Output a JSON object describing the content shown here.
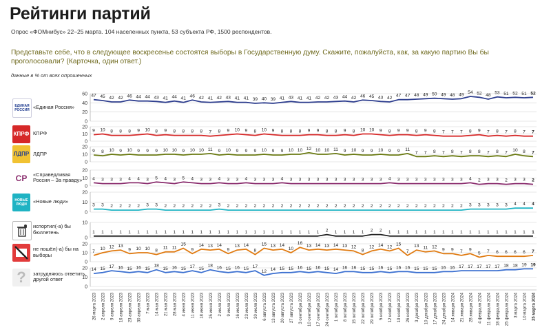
{
  "header": {
    "title": "Рейтинги партий",
    "subtitle": "Опрос «ФОМнибус» 22–25 марта. 104 населенных пункта, 53 субъекта РФ, 1500 респондентов.",
    "question": "Представьте себе, что в следующее воскресенье состоятся выборы в Государственную думу. Скажите, пожалуйста, как, за какую партию Вы бы проголосовали? (Карточка, один ответ.)",
    "units": "данные в % от всех опрошенных"
  },
  "colors": {
    "title": "#1c1c1c",
    "question": "#6f6a1e",
    "grid": "#cfcfcf"
  },
  "chart_data": {
    "type": "line",
    "dates": [
      "26 марта 2023",
      "2 апреля 2023",
      "9 апреля 2023",
      "16 апреля 2023",
      "23 апреля 2023",
      "30 апреля 2023",
      "7 мая 2023",
      "14 мая 2023",
      "21 мая 2023",
      "28 мая 2023",
      "4 июня 2023",
      "11 июня 2023",
      "18 июня 2023",
      "25 июня 2023",
      "2 июля 2023",
      "9 июля 2023",
      "16 июля 2023",
      "23 июля 2023",
      "30 июля 2023",
      "6 августа 2023",
      "13 августа 2023",
      "20 августа 2023",
      "27 августа 2023",
      "3 сентября 2023",
      "10 сентября 2023",
      "17 сентября 2023",
      "24 сентября 2023",
      "1 октября 2023",
      "8 октября 2023",
      "15 октября 2023",
      "22 октября 2023",
      "29 октября 2023",
      "5 ноября 2023",
      "12 ноября 2023",
      "19 ноября 2023",
      "26 ноября 2023",
      "3 декабря 2023",
      "10 декабря 2023",
      "17 декабря 2023",
      "24 декабря 2023",
      "14 января 2024",
      "21 января 2024",
      "28 января 2024",
      "4 февраля 2024",
      "11 февраля 2024",
      "18 февраля 2024",
      "25 февраля 2024",
      "3 марта 2024",
      "10 марта 2024",
      "25 марта 2024"
    ],
    "series": [
      {
        "name": "«Единая Россия»",
        "logo": "ЕДИНАЯ РОССИЯ",
        "color": "#2f3f8f",
        "axis": [
          0,
          20,
          40,
          60
        ],
        "values": [
          47,
          45,
          42,
          42,
          46,
          44,
          44,
          43,
          41,
          44,
          41,
          46,
          42,
          41,
          42,
          43,
          41,
          41,
          39,
          40,
          39,
          41,
          43,
          41,
          41,
          42,
          42,
          43,
          44,
          42,
          46,
          45,
          43,
          42,
          47,
          47,
          48,
          49,
          50,
          49,
          48,
          49,
          54,
          52,
          48,
          53,
          51,
          52,
          51,
          52
        ]
      },
      {
        "name": "КПРФ",
        "logo": "КПРФ",
        "color": "#d62828",
        "axis": [
          0,
          10,
          20
        ],
        "values": [
          9,
          10,
          8,
          8,
          8,
          9,
          10,
          8,
          9,
          8,
          8,
          8,
          8,
          7,
          8,
          9,
          10,
          9,
          8,
          10,
          9,
          8,
          8,
          8,
          9,
          9,
          8,
          8,
          9,
          8,
          10,
          10,
          9,
          8,
          9,
          9,
          8,
          9,
          8,
          7,
          7,
          7,
          8,
          9,
          7,
          8,
          7,
          8,
          7,
          7
        ]
      },
      {
        "name": "ЛДПР",
        "logo": "ЛДПР",
        "color": "#6a7a12",
        "axis": [
          0,
          10,
          20
        ],
        "values": [
          9,
          8,
          10,
          9,
          10,
          9,
          9,
          9,
          10,
          10,
          9,
          10,
          10,
          11,
          9,
          10,
          9,
          9,
          9,
          10,
          9,
          9,
          10,
          10,
          12,
          10,
          10,
          11,
          9,
          10,
          9,
          9,
          10,
          9,
          9,
          11,
          7,
          7,
          8,
          7,
          8,
          7,
          8,
          8,
          7,
          8,
          7,
          10,
          8,
          7
        ]
      },
      {
        "name": "«Справедливая Россия – За правду»",
        "logo": "СР",
        "color": "#8a2d6e",
        "axis": [
          0,
          10,
          20
        ],
        "values": [
          4,
          3,
          3,
          3,
          4,
          4,
          3,
          5,
          4,
          3,
          5,
          4,
          3,
          3,
          4,
          3,
          3,
          4,
          3,
          3,
          3,
          4,
          3,
          3,
          3,
          3,
          3,
          3,
          3,
          3,
          3,
          3,
          3,
          4,
          3,
          3,
          3,
          3,
          3,
          3,
          3,
          3,
          4,
          2,
          3,
          3,
          2,
          3,
          3,
          2
        ]
      },
      {
        "name": "«Новые люди»",
        "logo": "НОВЫЕ ЛЮДИ",
        "color": "#1fb3c3",
        "axis": [
          0,
          10,
          20
        ],
        "values": [
          3,
          3,
          2,
          2,
          2,
          2,
          3,
          3,
          2,
          2,
          2,
          2,
          2,
          2,
          3,
          2,
          2,
          2,
          2,
          2,
          2,
          2,
          2,
          2,
          2,
          2,
          2,
          2,
          2,
          2,
          2,
          2,
          2,
          2,
          2,
          2,
          2,
          2,
          2,
          2,
          2,
          2,
          3,
          3,
          3,
          3,
          3,
          4,
          4,
          4
        ]
      },
      {
        "name": "испортил(-а) бы бюллетень",
        "logo": "bin",
        "color": "#222222",
        "axis": [
          0,
          10
        ],
        "values": [
          1,
          1,
          1,
          1,
          1,
          1,
          1,
          1,
          1,
          1,
          1,
          1,
          1,
          1,
          1,
          1,
          1,
          1,
          1,
          1,
          1,
          1,
          1,
          1,
          1,
          1,
          2,
          1,
          1,
          1,
          1,
          2,
          2,
          1,
          1,
          1,
          1,
          1,
          1,
          1,
          1,
          1,
          1,
          1,
          1,
          1,
          1,
          1,
          1,
          1
        ]
      },
      {
        "name": "не пошёл(-а) бы на выборы",
        "logo": "no-vote",
        "color": "#e07a10",
        "axis": [
          0,
          10,
          20
        ],
        "values": [
          7,
          10,
          12,
          13,
          9,
          10,
          10,
          8,
          11,
          11,
          15,
          9,
          14,
          13,
          14,
          9,
          13,
          14,
          8,
          15,
          13,
          14,
          10,
          16,
          13,
          14,
          13,
          14,
          13,
          12,
          8,
          12,
          14,
          12,
          15,
          7,
          13,
          11,
          12,
          9,
          9,
          7,
          9,
          5,
          7,
          6,
          6,
          6,
          6,
          7
        ]
      },
      {
        "name": "затрудняюсь ответить, другой ответ",
        "logo": "question",
        "color": "#3a6fd0",
        "axis": [
          0,
          10,
          20
        ],
        "values": [
          14,
          15,
          17,
          16,
          15,
          16,
          15,
          18,
          15,
          16,
          15,
          17,
          15,
          18,
          16,
          15,
          16,
          15,
          17,
          12,
          14,
          15,
          15,
          16,
          15,
          16,
          15,
          14,
          16,
          16,
          15,
          15,
          16,
          15,
          16,
          16,
          15,
          15,
          15,
          16,
          16,
          17,
          17,
          17,
          17,
          17,
          18,
          18,
          19,
          19
        ]
      }
    ]
  }
}
